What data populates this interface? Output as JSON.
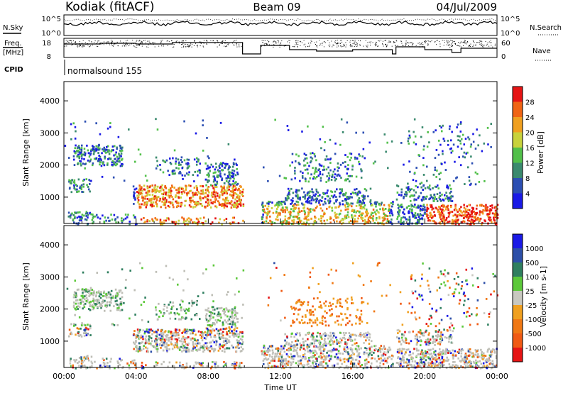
{
  "header": {
    "station": "Kodiak (fitACF)",
    "beam": "Beam 09",
    "date": "04/Jul/2009"
  },
  "strip_labels": {
    "nsky": "N.Sky",
    "nsky_top": "10^5",
    "nsky_bottom": "10^0",
    "nsearch": "N.Search",
    "nsearch_top": "10^5",
    "nsearch_bottom": "10^0",
    "freq_line1": "Freq.",
    "freq_line2": "[MHz]",
    "freq_top": "18",
    "freq_bottom": "8",
    "nave": "Nave",
    "nave_top": "60",
    "nave_bottom": "0",
    "cpid": "CPID",
    "cpid_program": "normalsound 155"
  },
  "x_axis": {
    "label": "Time UT",
    "ticks": [
      "00:00",
      "04:00",
      "08:00",
      "12:00",
      "16:00",
      "20:00",
      "00:00"
    ]
  },
  "colors": {
    "power_scale": [
      "#1a1ae6",
      "#2c4fb3",
      "#3a8a6e",
      "#52c04a",
      "#c8d23c",
      "#f0a020",
      "#f06414",
      "#e61414"
    ],
    "velocity_scale": [
      "#1a1ae6",
      "#2d4fa8",
      "#2f7f5f",
      "#5cc83a",
      "#c8c8c0",
      "#f0a020",
      "#f07814",
      "#f05a14",
      "#e61414"
    ],
    "ground_scatter": "#bebeb6"
  },
  "chart_data": [
    {
      "type": "heatmap",
      "title": "",
      "xlabel": "Time UT",
      "ylabel": "Slant Range [km]",
      "x_ticks": [
        "00:00",
        "04:00",
        "08:00",
        "12:00",
        "16:00",
        "20:00",
        "00:00"
      ],
      "xlim_hours": [
        0,
        24
      ],
      "ylim_km": [
        180,
        4600
      ],
      "y_ticks": [
        1000,
        2000,
        3000,
        4000
      ],
      "colorbar": {
        "label": "Power [dB]",
        "ticks": [
          "4",
          "8",
          "12",
          "16",
          "20",
          "24",
          "28"
        ],
        "range": [
          0,
          30
        ]
      },
      "data_gaps_hours": [
        [
          9.9,
          10.9
        ],
        [
          18.2,
          18.4
        ]
      ]
    },
    {
      "type": "heatmap",
      "title": "",
      "xlabel": "Time UT",
      "ylabel": "Slant Range [km]",
      "x_ticks": [
        "00:00",
        "04:00",
        "08:00",
        "12:00",
        "16:00",
        "20:00",
        "00:00"
      ],
      "xlim_hours": [
        0,
        24
      ],
      "ylim_km": [
        180,
        4600
      ],
      "y_ticks": [
        1000,
        2000,
        3000,
        4000
      ],
      "colorbar": {
        "label": "Velocity [m s-1]",
        "ticks": [
          "1000",
          "500",
          "100",
          "25",
          "-25",
          "-100",
          "-500",
          "-1000"
        ]
      },
      "data_gaps_hours": [
        [
          9.9,
          10.9
        ],
        [
          18.2,
          18.4
        ]
      ]
    }
  ]
}
